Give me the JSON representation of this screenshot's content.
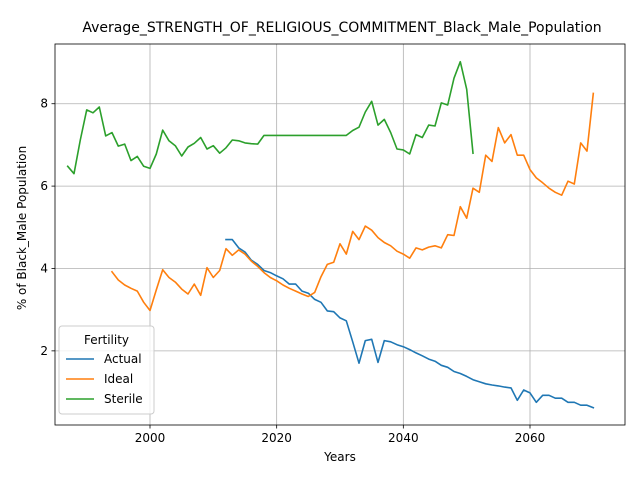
{
  "chart_data": {
    "type": "line",
    "title": "Average_STRENGTH_OF_RELIGIOUS_COMMITMENT_Black_Male_Population",
    "xlabel": "Years",
    "ylabel": "% of Black_Male Population",
    "xlim": [
      1985,
      2075
    ],
    "ylim": [
      0.2,
      9.45
    ],
    "xticks": [
      2000,
      2020,
      2040,
      2060
    ],
    "yticks": [
      2,
      4,
      6,
      8
    ],
    "grid": true,
    "legend": {
      "title": "Fertility",
      "placement": "lower-left"
    },
    "series": [
      {
        "name": "Actual",
        "color": "#1f77b4",
        "x": [
          2012,
          2013,
          2014,
          2015,
          2016,
          2017,
          2018,
          2019,
          2020,
          2021,
          2022,
          2023,
          2024,
          2025,
          2026,
          2027,
          2028,
          2029,
          2030,
          2031,
          2032,
          2033,
          2034,
          2035,
          2036,
          2037,
          2038,
          2039,
          2040,
          2041,
          2042,
          2043,
          2044,
          2045,
          2046,
          2047,
          2048,
          2049,
          2050,
          2051,
          2052,
          2053,
          2054,
          2055,
          2056,
          2057,
          2058,
          2059,
          2060,
          2061,
          2062,
          2063,
          2064,
          2065,
          2066,
          2067,
          2068,
          2069,
          2070
        ],
        "y": [
          4.7,
          4.7,
          4.5,
          4.4,
          4.2,
          4.1,
          3.95,
          3.9,
          3.82,
          3.75,
          3.62,
          3.62,
          3.45,
          3.4,
          3.25,
          3.18,
          2.97,
          2.95,
          2.8,
          2.73,
          2.22,
          1.7,
          2.25,
          2.28,
          1.72,
          2.25,
          2.22,
          2.15,
          2.1,
          2.03,
          1.95,
          1.88,
          1.8,
          1.75,
          1.65,
          1.6,
          1.5,
          1.45,
          1.38,
          1.3,
          1.25,
          1.2,
          1.17,
          1.15,
          1.12,
          1.1,
          0.8,
          1.05,
          0.98,
          0.75,
          0.92,
          0.92,
          0.85,
          0.85,
          0.75,
          0.75,
          0.68,
          0.68,
          0.62
        ]
      },
      {
        "name": "Ideal",
        "color": "#ff7f0e",
        "x": [
          1994,
          1995,
          1996,
          1997,
          1998,
          1999,
          2000,
          2001,
          2002,
          2003,
          2004,
          2005,
          2006,
          2007,
          2008,
          2009,
          2010,
          2011,
          2012,
          2013,
          2014,
          2015,
          2016,
          2017,
          2018,
          2019,
          2020,
          2021,
          2022,
          2023,
          2024,
          2025,
          2026,
          2027,
          2028,
          2029,
          2030,
          2031,
          2032,
          2033,
          2034,
          2035,
          2036,
          2037,
          2038,
          2039,
          2040,
          2041,
          2042,
          2043,
          2044,
          2045,
          2046,
          2047,
          2048,
          2049,
          2050,
          2051,
          2052,
          2053,
          2054,
          2055,
          2056,
          2057,
          2058,
          2059,
          2060,
          2061,
          2062,
          2063,
          2064,
          2065,
          2066,
          2067,
          2068,
          2069,
          2070
        ],
        "y": [
          3.92,
          3.72,
          3.6,
          3.52,
          3.45,
          3.18,
          2.98,
          3.48,
          3.97,
          3.78,
          3.67,
          3.5,
          3.38,
          3.62,
          3.35,
          4.02,
          3.78,
          3.95,
          4.48,
          4.32,
          4.45,
          4.35,
          4.18,
          4.05,
          3.9,
          3.78,
          3.7,
          3.6,
          3.52,
          3.45,
          3.38,
          3.32,
          3.42,
          3.8,
          4.1,
          4.15,
          4.6,
          4.35,
          4.9,
          4.7,
          5.03,
          4.93,
          4.75,
          4.63,
          4.55,
          4.42,
          4.35,
          4.25,
          4.5,
          4.45,
          4.52,
          4.55,
          4.5,
          4.82,
          4.8,
          5.5,
          5.22,
          5.95,
          5.85,
          6.75,
          6.6,
          7.42,
          7.05,
          7.25,
          6.75,
          6.75,
          6.4,
          6.2,
          6.08,
          5.95,
          5.85,
          5.78,
          6.12,
          6.05,
          7.05,
          6.85,
          8.25
        ]
      },
      {
        "name": "Sterile",
        "color": "#2ca02c",
        "x": [
          1987,
          1988,
          1989,
          1990,
          1991,
          1992,
          1993,
          1994,
          1995,
          1996,
          1997,
          1998,
          1999,
          2000,
          2001,
          2002,
          2003,
          2004,
          2005,
          2006,
          2007,
          2008,
          2009,
          2010,
          2011,
          2012,
          2013,
          2014,
          2015,
          2016,
          2017,
          2018,
          2019,
          2020,
          2021,
          2022,
          2023,
          2024,
          2025,
          2026,
          2027,
          2028,
          2029,
          2030,
          2031,
          2032,
          2033,
          2034,
          2035,
          2036,
          2037,
          2038,
          2039,
          2040,
          2041,
          2042,
          2043,
          2044,
          2045,
          2046,
          2047,
          2048,
          2049,
          2050,
          2051
        ],
        "y": [
          6.48,
          6.3,
          7.12,
          7.85,
          7.78,
          7.92,
          7.22,
          7.3,
          6.97,
          7.02,
          6.62,
          6.72,
          6.48,
          6.43,
          6.78,
          7.36,
          7.1,
          6.98,
          6.73,
          6.95,
          7.04,
          7.18,
          6.9,
          6.98,
          6.8,
          6.93,
          7.12,
          7.1,
          7.05,
          7.03,
          7.02,
          7.23,
          7.23,
          7.23,
          7.23,
          7.23,
          7.23,
          7.23,
          7.23,
          7.23,
          7.23,
          7.23,
          7.23,
          7.23,
          7.23,
          7.35,
          7.43,
          7.8,
          8.06,
          7.48,
          7.62,
          7.3,
          6.9,
          6.88,
          6.78,
          7.25,
          7.18,
          7.48,
          7.46,
          8.02,
          7.97,
          8.62,
          9.02,
          8.35,
          6.8
        ]
      }
    ]
  }
}
